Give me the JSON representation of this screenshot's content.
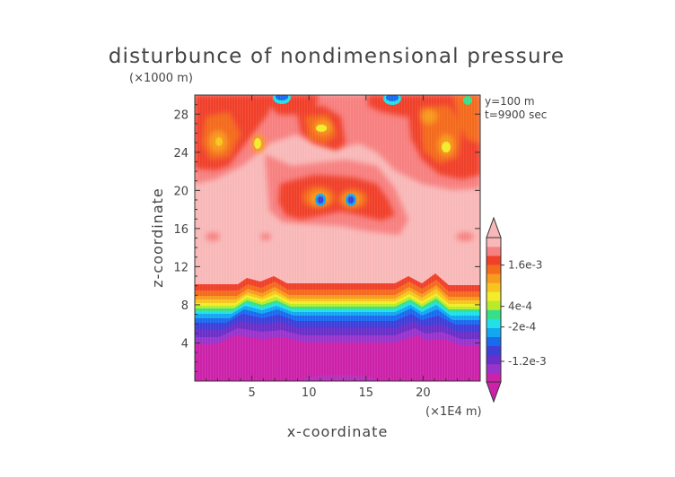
{
  "chart_data": {
    "type": "heatmap",
    "title": "disturbunce of nondimensional pressure",
    "z_unit": "(×1000 m)",
    "x_unit": "(×1E4 m)",
    "xlabel": "x-coordinate",
    "ylabel": "z-coordinate",
    "info": [
      "y=100  m",
      "t=9900 sec"
    ],
    "xlim": [
      0,
      25
    ],
    "ylim": [
      0,
      30
    ],
    "x_ticks": [
      5,
      10,
      15,
      20
    ],
    "y_ticks": [
      4,
      8,
      12,
      16,
      20,
      24,
      28
    ],
    "colorbar": {
      "labels": [
        {
          "text": "1.6e-3",
          "value": 0.0016
        },
        {
          "text": "4e-4",
          "value": 0.0004
        },
        {
          "text": "-2e-4",
          "value": -0.0002
        },
        {
          "text": "-1.2e-3",
          "value": -0.0012
        }
      ],
      "colors": [
        "#cc22aa",
        "#9a33cc",
        "#6a2fc8",
        "#3e3fd8",
        "#1a6af0",
        "#12a8f0",
        "#22e0e8",
        "#36e08a",
        "#b8ec2a",
        "#f2ec2a",
        "#f7c51e",
        "#f79a1e",
        "#f46a1e",
        "#f0402a",
        "#f78080",
        "#f8b8b8"
      ],
      "extend": "both"
    },
    "field_description": [
      {
        "region": "z 0-6 km",
        "level": "minimum (magenta)"
      },
      {
        "region": "z 6-9 km",
        "level": "sharp gradient through blue/green/yellow/orange"
      },
      {
        "region": "z 9-30 km",
        "level": "mostly light pink with red/orange patches near 18-20 km and 24-29 km"
      }
    ]
  }
}
